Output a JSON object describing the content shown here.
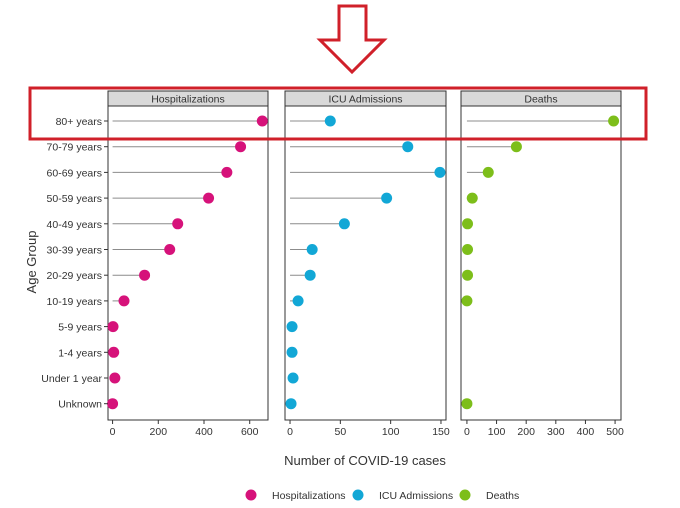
{
  "chart_data": {
    "type": "lollipop",
    "categories": [
      "80+ years",
      "70-79 years",
      "60-69 years",
      "50-59 years",
      "40-49 years",
      "30-39 years",
      "20-29 years",
      "10-19 years",
      "5-9 years",
      "1-4 years",
      "Under 1 year",
      "Unknown"
    ],
    "xlabel": "Number of COVID-19 cases",
    "ylabel": "Age Group",
    "highlighted_category": "80+ years",
    "panels": [
      {
        "name": "Hospitalizations",
        "color": "#d6127a",
        "xlim": [
          -20,
          680
        ],
        "ticks": [
          0,
          200,
          400,
          600
        ],
        "values": [
          655,
          560,
          500,
          420,
          285,
          250,
          140,
          50,
          2,
          5,
          10,
          0
        ]
      },
      {
        "name": "ICU Admissions",
        "color": "#12a7d6",
        "xlim": [
          -5,
          155
        ],
        "ticks": [
          0,
          50,
          100,
          150
        ],
        "values": [
          40,
          117,
          149,
          96,
          54,
          22,
          20,
          8,
          2,
          2,
          3,
          1
        ]
      },
      {
        "name": "Deaths",
        "color": "#7dbe1a",
        "xlim": [
          -20,
          520
        ],
        "ticks": [
          0,
          100,
          200,
          300,
          400,
          500
        ],
        "values": [
          495,
          167,
          72,
          18,
          2,
          2,
          2,
          0,
          null,
          null,
          null,
          0
        ]
      }
    ],
    "legend": {
      "position": "bottom",
      "items": [
        "Hospitalizations",
        "ICU Admissions",
        "Deaths"
      ]
    }
  },
  "annotation": {
    "arrow_color": "#d0202a",
    "highlight_box_color": "#d0202a"
  }
}
